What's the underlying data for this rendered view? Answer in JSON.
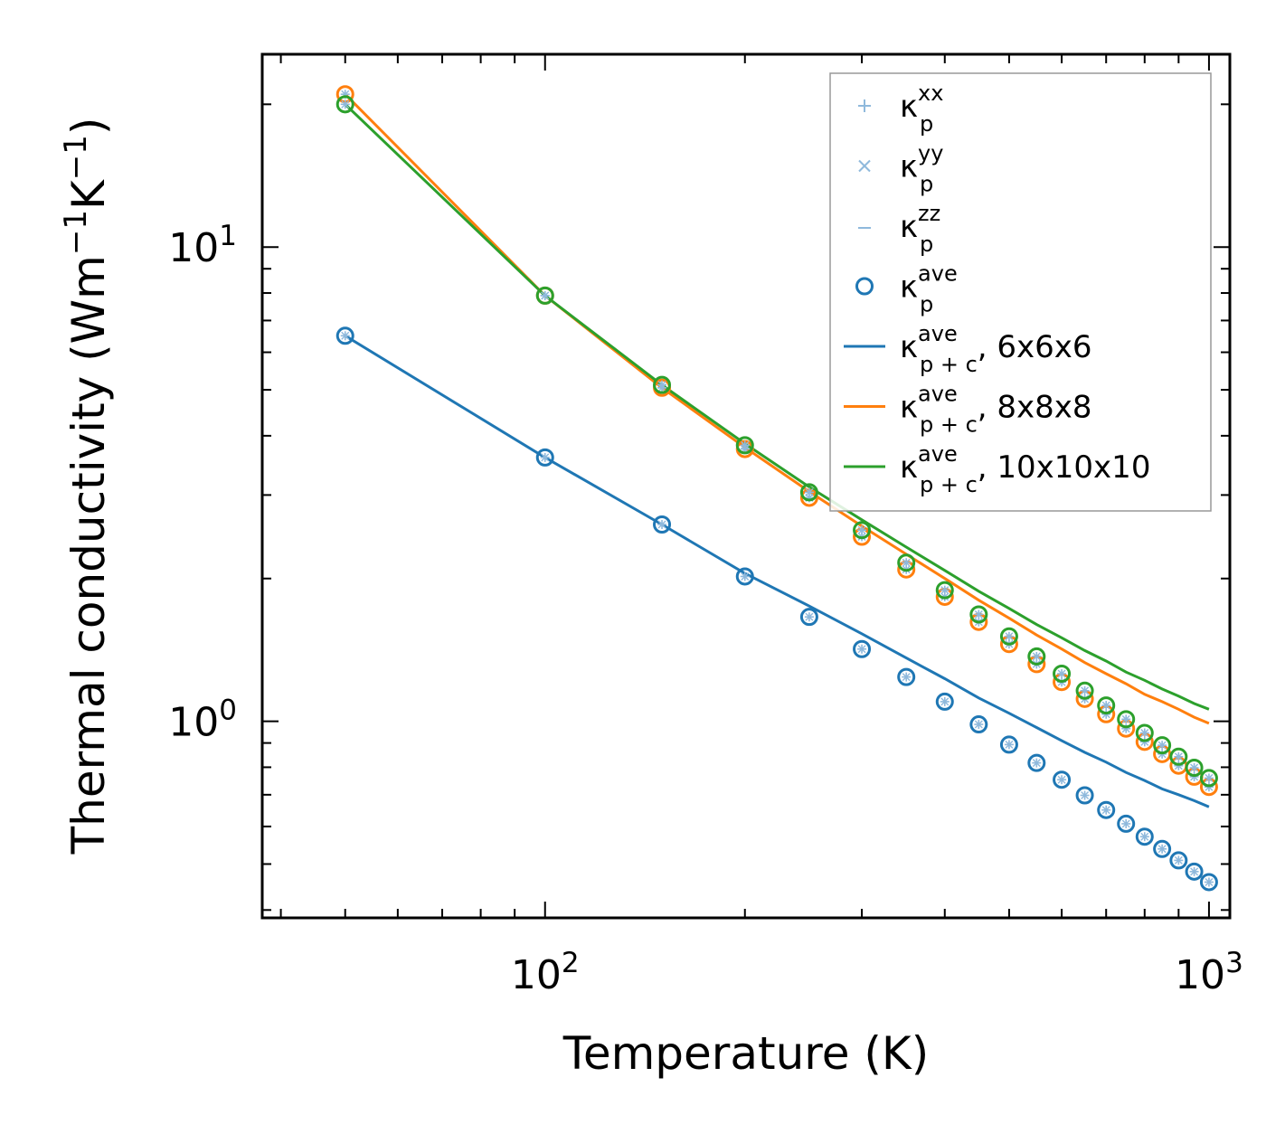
{
  "chart_data": {
    "type": "scatter",
    "xlabel": "Temperature (K)",
    "ylabel": "Thermal conductivity (Wm",
    "ylabel_unit": {
      "exp1": "−1",
      "mid": "K",
      "exp2": "−1",
      "close": ")"
    },
    "xscale": "log",
    "yscale": "log",
    "xlim": [
      37.5,
      1075
    ],
    "ylim": [
      0.385,
      25.5
    ],
    "x_ticks": [
      {
        "value": 100,
        "base": "10",
        "exp": "2"
      },
      {
        "value": 1000,
        "base": "10",
        "exp": "3"
      }
    ],
    "y_ticks": [
      {
        "value": 1,
        "base": "10",
        "exp": "0"
      },
      {
        "value": 10,
        "base": "10",
        "exp": "1"
      }
    ],
    "legend_position": "upper right",
    "legend": [
      {
        "key": "xx",
        "marker": "plus",
        "color": "#8fb9dc",
        "base": "κ",
        "sub": "p",
        "sup": "xx",
        "suffix": ""
      },
      {
        "key": "yy",
        "marker": "cross",
        "color": "#8fb9dc",
        "base": "κ",
        "sub": "p",
        "sup": "yy",
        "suffix": ""
      },
      {
        "key": "zz",
        "marker": "dash",
        "color": "#8fb9dc",
        "base": "κ",
        "sub": "p",
        "sup": "zz",
        "suffix": ""
      },
      {
        "key": "ave",
        "marker": "circle",
        "color": "#1f77b4",
        "base": "κ",
        "sub": "p",
        "sup": "ave",
        "suffix": ""
      },
      {
        "key": "line6",
        "marker": "line",
        "color": "#1f77b4",
        "base": "κ",
        "sub": "p + c",
        "sup": "ave",
        "suffix": ", 6x6x6"
      },
      {
        "key": "line8",
        "marker": "line",
        "color": "#ff7f0e",
        "base": "κ",
        "sub": "p + c",
        "sup": "ave",
        "suffix": ", 8x8x8"
      },
      {
        "key": "line10",
        "marker": "line",
        "color": "#2ca02c",
        "base": "κ",
        "sub": "p + c",
        "sup": "ave",
        "suffix": ", 10x10x10"
      }
    ],
    "x": [
      50,
      100,
      150,
      200,
      250,
      300,
      350,
      400,
      450,
      500,
      550,
      600,
      650,
      700,
      750,
      800,
      850,
      900,
      950,
      1000
    ],
    "series": [
      {
        "name": "6x6x6",
        "color": "#1f77b4",
        "points": [
          6.5,
          3.6,
          2.6,
          2.02,
          1.66,
          1.42,
          1.24,
          1.1,
          0.985,
          0.893,
          0.817,
          0.753,
          0.698,
          0.65,
          0.608,
          0.571,
          0.538,
          0.509,
          0.482,
          0.458
        ],
        "line": [
          6.5,
          3.6,
          2.6,
          2.05,
          1.75,
          1.53,
          1.36,
          1.23,
          1.12,
          1.04,
          0.97,
          0.91,
          0.86,
          0.82,
          0.78,
          0.75,
          0.72,
          0.7,
          0.68,
          0.66
        ]
      },
      {
        "name": "8x8x8",
        "color": "#ff7f0e",
        "points": [
          21.0,
          7.9,
          5.05,
          3.75,
          2.96,
          2.45,
          2.09,
          1.83,
          1.62,
          1.455,
          1.32,
          1.21,
          1.115,
          1.035,
          0.965,
          0.905,
          0.853,
          0.806,
          0.764,
          0.727
        ],
        "line": [
          21.0,
          7.9,
          5.05,
          3.78,
          3.05,
          2.58,
          2.25,
          2.0,
          1.8,
          1.65,
          1.52,
          1.42,
          1.33,
          1.26,
          1.2,
          1.14,
          1.1,
          1.06,
          1.02,
          0.99
        ]
      },
      {
        "name": "10x10x10",
        "color": "#2ca02c",
        "points": [
          20.0,
          7.9,
          5.12,
          3.82,
          3.04,
          2.53,
          2.16,
          1.89,
          1.68,
          1.51,
          1.37,
          1.26,
          1.16,
          1.08,
          1.01,
          0.945,
          0.89,
          0.842,
          0.798,
          0.759
        ],
        "line": [
          20.0,
          7.9,
          5.12,
          3.85,
          3.12,
          2.66,
          2.33,
          2.08,
          1.88,
          1.73,
          1.6,
          1.5,
          1.41,
          1.34,
          1.27,
          1.22,
          1.17,
          1.13,
          1.09,
          1.06
        ]
      }
    ]
  }
}
